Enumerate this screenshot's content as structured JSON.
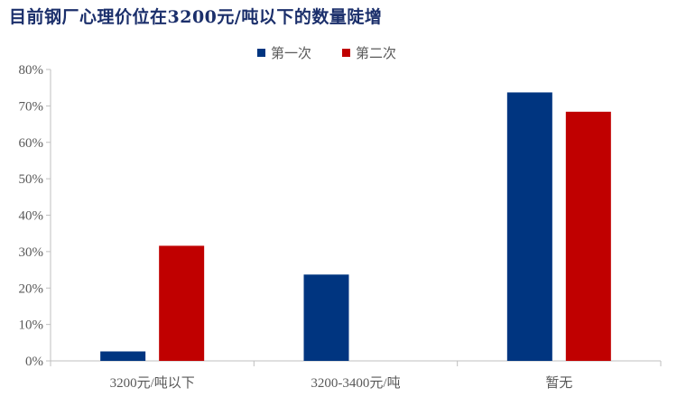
{
  "chart_data": {
    "type": "bar",
    "title": "目前钢厂心理价位在3200元/吨以下的数量陡增",
    "categories": [
      "3200元/吨以下",
      "3200-3400元/吨",
      "暂无"
    ],
    "series": [
      {
        "name": "第一次",
        "color": "#003580",
        "values": [
          2.6,
          23.7,
          73.7
        ]
      },
      {
        "name": "第二次",
        "color": "#c00000",
        "values": [
          31.6,
          0,
          68.4
        ]
      }
    ],
    "yticks": [
      "0%",
      "10%",
      "20%",
      "30%",
      "40%",
      "50%",
      "60%",
      "70%",
      "80%"
    ],
    "ylim": [
      0,
      80
    ],
    "grid": false,
    "legend_position": "top"
  }
}
